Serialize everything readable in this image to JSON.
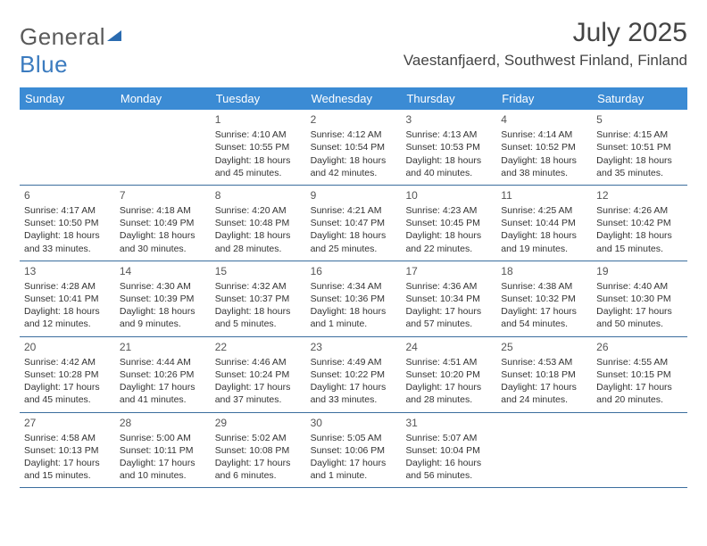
{
  "brand": {
    "part1": "General",
    "part2": "Blue"
  },
  "title": "July 2025",
  "location": "Vaestanfjaerd, Southwest Finland, Finland",
  "colors": {
    "header_bg": "#3b8bd4",
    "row_border": "#3b6e9e",
    "logo_blue": "#3b7bbf",
    "logo_gray": "#5a5a5a",
    "text": "#333333"
  },
  "day_headers": [
    "Sunday",
    "Monday",
    "Tuesday",
    "Wednesday",
    "Thursday",
    "Friday",
    "Saturday"
  ],
  "weeks": [
    [
      null,
      null,
      {
        "n": "1",
        "sr": "4:10 AM",
        "ss": "10:55 PM",
        "dl": "18 hours and 45 minutes."
      },
      {
        "n": "2",
        "sr": "4:12 AM",
        "ss": "10:54 PM",
        "dl": "18 hours and 42 minutes."
      },
      {
        "n": "3",
        "sr": "4:13 AM",
        "ss": "10:53 PM",
        "dl": "18 hours and 40 minutes."
      },
      {
        "n": "4",
        "sr": "4:14 AM",
        "ss": "10:52 PM",
        "dl": "18 hours and 38 minutes."
      },
      {
        "n": "5",
        "sr": "4:15 AM",
        "ss": "10:51 PM",
        "dl": "18 hours and 35 minutes."
      }
    ],
    [
      {
        "n": "6",
        "sr": "4:17 AM",
        "ss": "10:50 PM",
        "dl": "18 hours and 33 minutes."
      },
      {
        "n": "7",
        "sr": "4:18 AM",
        "ss": "10:49 PM",
        "dl": "18 hours and 30 minutes."
      },
      {
        "n": "8",
        "sr": "4:20 AM",
        "ss": "10:48 PM",
        "dl": "18 hours and 28 minutes."
      },
      {
        "n": "9",
        "sr": "4:21 AM",
        "ss": "10:47 PM",
        "dl": "18 hours and 25 minutes."
      },
      {
        "n": "10",
        "sr": "4:23 AM",
        "ss": "10:45 PM",
        "dl": "18 hours and 22 minutes."
      },
      {
        "n": "11",
        "sr": "4:25 AM",
        "ss": "10:44 PM",
        "dl": "18 hours and 19 minutes."
      },
      {
        "n": "12",
        "sr": "4:26 AM",
        "ss": "10:42 PM",
        "dl": "18 hours and 15 minutes."
      }
    ],
    [
      {
        "n": "13",
        "sr": "4:28 AM",
        "ss": "10:41 PM",
        "dl": "18 hours and 12 minutes."
      },
      {
        "n": "14",
        "sr": "4:30 AM",
        "ss": "10:39 PM",
        "dl": "18 hours and 9 minutes."
      },
      {
        "n": "15",
        "sr": "4:32 AM",
        "ss": "10:37 PM",
        "dl": "18 hours and 5 minutes."
      },
      {
        "n": "16",
        "sr": "4:34 AM",
        "ss": "10:36 PM",
        "dl": "18 hours and 1 minute."
      },
      {
        "n": "17",
        "sr": "4:36 AM",
        "ss": "10:34 PM",
        "dl": "17 hours and 57 minutes."
      },
      {
        "n": "18",
        "sr": "4:38 AM",
        "ss": "10:32 PM",
        "dl": "17 hours and 54 minutes."
      },
      {
        "n": "19",
        "sr": "4:40 AM",
        "ss": "10:30 PM",
        "dl": "17 hours and 50 minutes."
      }
    ],
    [
      {
        "n": "20",
        "sr": "4:42 AM",
        "ss": "10:28 PM",
        "dl": "17 hours and 45 minutes."
      },
      {
        "n": "21",
        "sr": "4:44 AM",
        "ss": "10:26 PM",
        "dl": "17 hours and 41 minutes."
      },
      {
        "n": "22",
        "sr": "4:46 AM",
        "ss": "10:24 PM",
        "dl": "17 hours and 37 minutes."
      },
      {
        "n": "23",
        "sr": "4:49 AM",
        "ss": "10:22 PM",
        "dl": "17 hours and 33 minutes."
      },
      {
        "n": "24",
        "sr": "4:51 AM",
        "ss": "10:20 PM",
        "dl": "17 hours and 28 minutes."
      },
      {
        "n": "25",
        "sr": "4:53 AM",
        "ss": "10:18 PM",
        "dl": "17 hours and 24 minutes."
      },
      {
        "n": "26",
        "sr": "4:55 AM",
        "ss": "10:15 PM",
        "dl": "17 hours and 20 minutes."
      }
    ],
    [
      {
        "n": "27",
        "sr": "4:58 AM",
        "ss": "10:13 PM",
        "dl": "17 hours and 15 minutes."
      },
      {
        "n": "28",
        "sr": "5:00 AM",
        "ss": "10:11 PM",
        "dl": "17 hours and 10 minutes."
      },
      {
        "n": "29",
        "sr": "5:02 AM",
        "ss": "10:08 PM",
        "dl": "17 hours and 6 minutes."
      },
      {
        "n": "30",
        "sr": "5:05 AM",
        "ss": "10:06 PM",
        "dl": "17 hours and 1 minute."
      },
      {
        "n": "31",
        "sr": "5:07 AM",
        "ss": "10:04 PM",
        "dl": "16 hours and 56 minutes."
      },
      null,
      null
    ]
  ],
  "labels": {
    "sunrise": "Sunrise:",
    "sunset": "Sunset:",
    "daylight": "Daylight:"
  }
}
